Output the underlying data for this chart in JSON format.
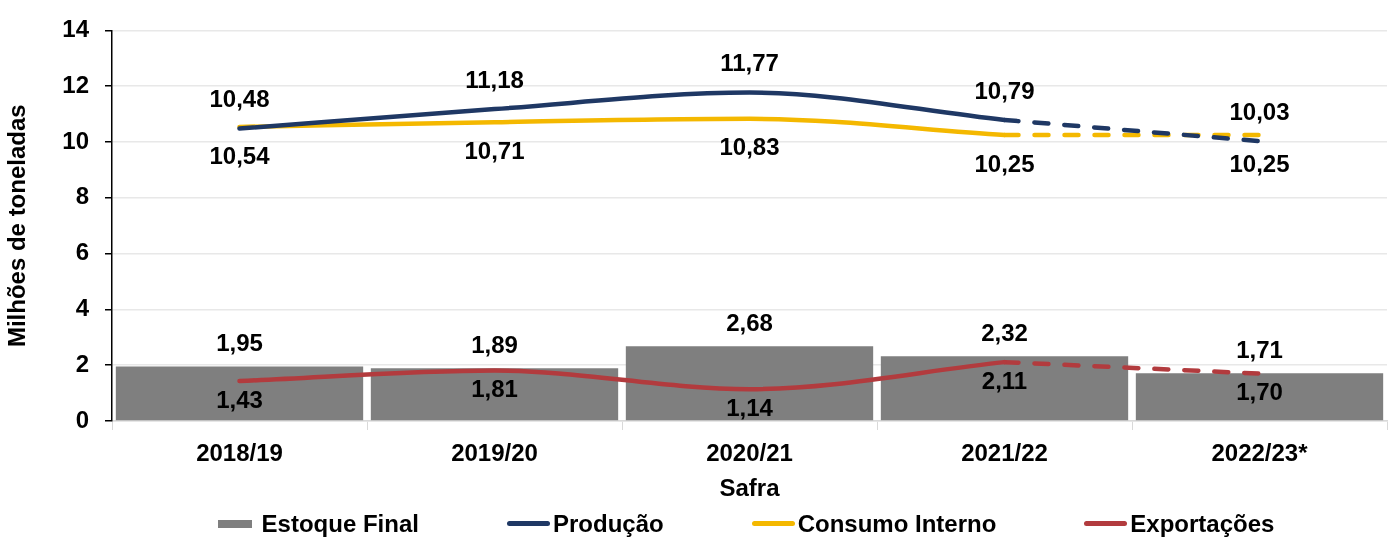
{
  "chart_data": {
    "type": "bar",
    "categories": [
      "2018/19",
      "2019/20",
      "2020/21",
      "2021/22",
      "2022/23*"
    ],
    "xlabel": "Safra",
    "ylabel": "Milhões de toneladas",
    "ylim": [
      0,
      14
    ],
    "yticks": [
      0,
      2,
      4,
      6,
      8,
      10,
      12,
      14
    ],
    "grid": "y",
    "legend": "bottom",
    "marker": "none",
    "series": [
      {
        "name": "Estoque Final",
        "color": "#7f7f7f",
        "values": [
          1.95,
          1.89,
          2.68,
          2.32,
          1.71
        ],
        "value_labels": [
          "1,95",
          "1,89",
          "2,68",
          "2,32",
          "1,71"
        ]
      },
      {
        "name": "Produção",
        "type": "line",
        "line_style": "solid",
        "color": "#1f3864",
        "values": [
          10.48,
          11.18,
          11.77,
          10.79,
          null
        ],
        "value_labels": [
          "10,48",
          "11,18",
          "11,77",
          "10,79",
          null
        ]
      },
      {
        "name": "Consumo Interno",
        "type": "line",
        "line_style": "solid",
        "color": "#f4b800",
        "values": [
          10.54,
          10.71,
          10.83,
          10.25,
          null
        ],
        "value_labels": [
          "10,54",
          "10,71",
          "10,83",
          "10,25",
          null
        ]
      },
      {
        "name": "Exportações",
        "type": "line",
        "line_style": "solid",
        "color": "#b23b3e",
        "values": [
          1.43,
          1.81,
          1.14,
          2.11,
          null
        ],
        "value_labels": [
          "1,43",
          "1,81",
          "1,14",
          "2,11",
          null
        ]
      },
      {
        "type": "line",
        "line_style": "dashed",
        "color": "#1f3864",
        "values": [
          null,
          null,
          null,
          10.79,
          10.03
        ],
        "value_labels": [
          null,
          null,
          null,
          null,
          "10,03"
        ]
      },
      {
        "type": "line",
        "line_style": "dashed",
        "color": "#f4b800",
        "values": [
          null,
          null,
          null,
          10.25,
          10.25
        ],
        "value_labels": [
          null,
          null,
          null,
          null,
          "10,25"
        ]
      },
      {
        "type": "line",
        "line_style": "dashed",
        "color": "#b23b3e",
        "values": [
          null,
          null,
          null,
          2.11,
          1.7
        ],
        "value_labels": [
          null,
          null,
          null,
          null,
          "1,70"
        ]
      }
    ]
  }
}
